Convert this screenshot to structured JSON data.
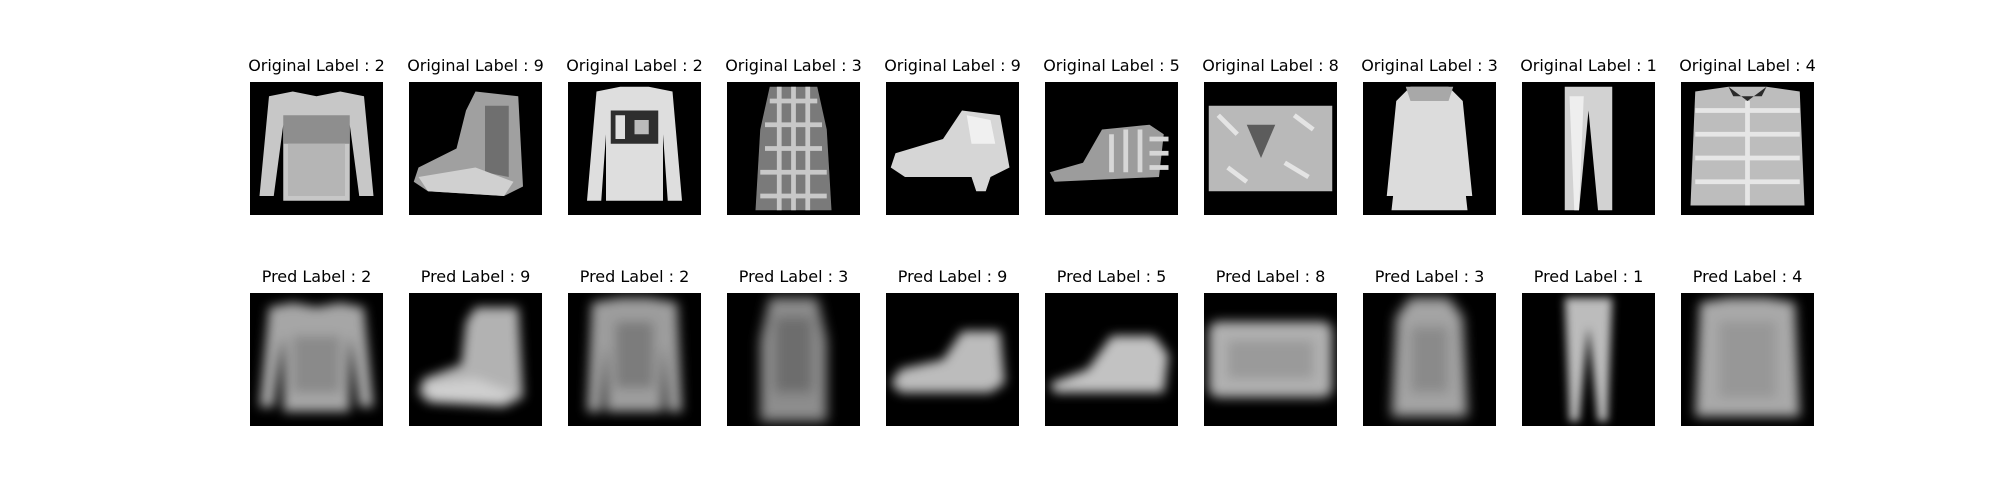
{
  "figure": {
    "original_row": [
      {
        "title": "Original Label : 2",
        "item": "pullover"
      },
      {
        "title": "Original Label : 9",
        "item": "ankle-boot"
      },
      {
        "title": "Original Label : 2",
        "item": "pullover"
      },
      {
        "title": "Original Label : 3",
        "item": "dress"
      },
      {
        "title": "Original Label : 9",
        "item": "ankle-boot"
      },
      {
        "title": "Original Label : 5",
        "item": "sandal"
      },
      {
        "title": "Original Label : 8",
        "item": "bag"
      },
      {
        "title": "Original Label : 3",
        "item": "dress"
      },
      {
        "title": "Original Label : 1",
        "item": "trouser"
      },
      {
        "title": "Original Label : 4",
        "item": "coat"
      }
    ],
    "pred_row": [
      {
        "title": "Pred Label : 2",
        "item": "pullover"
      },
      {
        "title": "Pred Label : 9",
        "item": "ankle-boot"
      },
      {
        "title": "Pred Label : 2",
        "item": "pullover"
      },
      {
        "title": "Pred Label : 3",
        "item": "dress"
      },
      {
        "title": "Pred Label : 9",
        "item": "ankle-boot"
      },
      {
        "title": "Pred Label : 5",
        "item": "sandal"
      },
      {
        "title": "Pred Label : 8",
        "item": "bag"
      },
      {
        "title": "Pred Label : 3",
        "item": "dress"
      },
      {
        "title": "Pred Label : 1",
        "item": "trouser"
      },
      {
        "title": "Pred Label : 4",
        "item": "coat"
      }
    ]
  },
  "colors": {
    "background": "#ffffff",
    "image_bg": "#000000",
    "garment_light": "#d8d8d8",
    "garment_mid": "#a9a9a9",
    "garment_dark": "#5a5a5a"
  }
}
